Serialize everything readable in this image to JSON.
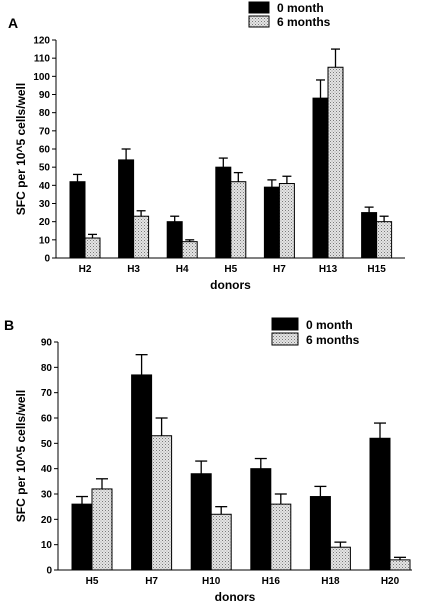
{
  "chart_data": [
    {
      "panel": "A",
      "type": "bar",
      "xlabel": "donors",
      "ylabel": "SFC per 10^5 cells/well",
      "ylim": [
        0,
        120
      ],
      "yticks": [
        0,
        10,
        20,
        30,
        40,
        50,
        60,
        70,
        80,
        90,
        100,
        110,
        120
      ],
      "categories": [
        "H2",
        "H3",
        "H4",
        "H5",
        "H7",
        "H13",
        "H15"
      ],
      "legend_position": "top-right",
      "series": [
        {
          "name": "0 month",
          "color": "#000000",
          "pattern": "solid",
          "values": [
            42,
            54,
            20,
            50,
            39,
            88,
            25
          ],
          "errors": [
            4,
            6,
            3,
            5,
            4,
            10,
            3
          ]
        },
        {
          "name": "6 months",
          "color": "#d8d8d8",
          "pattern": "stipple",
          "values": [
            11,
            23,
            9,
            42,
            41,
            105,
            20
          ],
          "errors": [
            2,
            3,
            1,
            5,
            4,
            10,
            3
          ]
        }
      ]
    },
    {
      "panel": "B",
      "type": "bar",
      "xlabel": "donors",
      "ylabel": "SFC per 10^5 cells/well",
      "ylim": [
        0,
        90
      ],
      "yticks": [
        0,
        10,
        20,
        30,
        40,
        50,
        60,
        70,
        80,
        90
      ],
      "categories": [
        "H5",
        "H7",
        "H10",
        "H16",
        "H18",
        "H20"
      ],
      "legend_position": "top-right",
      "series": [
        {
          "name": "0 month",
          "color": "#000000",
          "pattern": "solid",
          "values": [
            26,
            77,
            38,
            40,
            29,
            52
          ],
          "errors": [
            3,
            8,
            5,
            4,
            4,
            6
          ]
        },
        {
          "name": "6 months",
          "color": "#d8d8d8",
          "pattern": "stipple",
          "values": [
            32,
            53,
            22,
            26,
            9,
            4
          ],
          "errors": [
            4,
            7,
            3,
            4,
            2,
            1
          ]
        }
      ]
    }
  ]
}
